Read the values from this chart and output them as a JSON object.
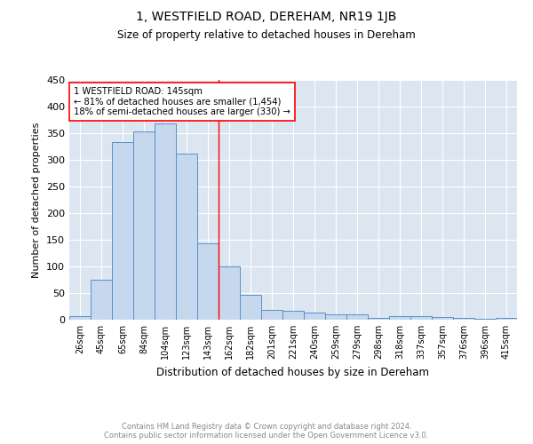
{
  "title": "1, WESTFIELD ROAD, DEREHAM, NR19 1JB",
  "subtitle": "Size of property relative to detached houses in Dereham",
  "xlabel": "Distribution of detached houses by size in Dereham",
  "ylabel": "Number of detached properties",
  "footer_line1": "Contains HM Land Registry data © Crown copyright and database right 2024.",
  "footer_line2": "Contains public sector information licensed under the Open Government Licence v3.0.",
  "bar_labels": [
    "26sqm",
    "45sqm",
    "65sqm",
    "84sqm",
    "104sqm",
    "123sqm",
    "143sqm",
    "162sqm",
    "182sqm",
    "201sqm",
    "221sqm",
    "240sqm",
    "259sqm",
    "279sqm",
    "298sqm",
    "318sqm",
    "337sqm",
    "357sqm",
    "376sqm",
    "396sqm",
    "415sqm"
  ],
  "bar_values": [
    7,
    75,
    334,
    354,
    369,
    311,
    143,
    100,
    47,
    18,
    17,
    14,
    10,
    10,
    4,
    7,
    6,
    5,
    4,
    1,
    4
  ],
  "bar_color": "#c5d8ed",
  "bar_edge_color": "#5b8fc9",
  "bg_color": "#dce6f1",
  "grid_color": "#ffffff",
  "vline_x": 6.5,
  "vline_color": "red",
  "annotation_text": "1 WESTFIELD ROAD: 145sqm\n← 81% of detached houses are smaller (1,454)\n18% of semi-detached houses are larger (330) →",
  "annotation_box_color": "white",
  "annotation_box_edge": "red",
  "ylim": [
    0,
    450
  ],
  "yticks": [
    0,
    50,
    100,
    150,
    200,
    250,
    300,
    350,
    400,
    450
  ]
}
